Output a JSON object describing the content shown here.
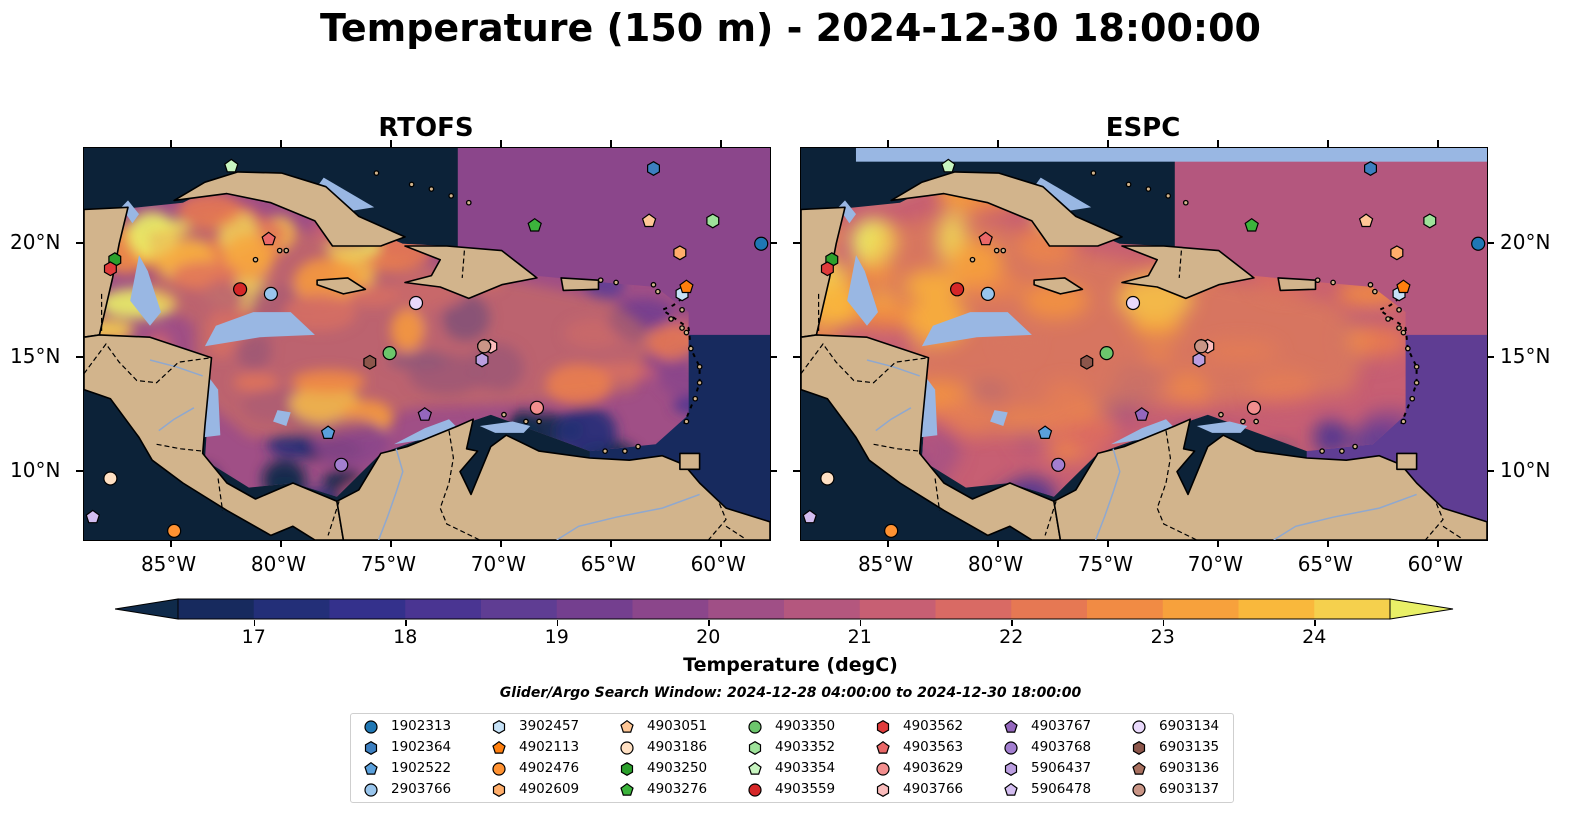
{
  "title": "Temperature (150 m) - 2024-12-30 18:00:00",
  "panels": [
    {
      "title": "RTOFS"
    },
    {
      "title": "ESPC"
    }
  ],
  "axes": {
    "lon_ticks": [
      "85°W",
      "80°W",
      "75°W",
      "70°W",
      "65°W",
      "60°W"
    ],
    "lat_ticks": [
      "20°N",
      "15°N",
      "10°N"
    ]
  },
  "colorbar": {
    "label": "Temperature (degC)",
    "ticks": [
      "17",
      "18",
      "19",
      "20",
      "21",
      "22",
      "23",
      "24"
    ],
    "range": [
      16.5,
      24.5
    ],
    "extend": "both",
    "colors": [
      "#0f2a4a",
      "#172a5e",
      "#232f78",
      "#34318c",
      "#4a3592",
      "#5f3d93",
      "#743f8f",
      "#8b468b",
      "#a04f86",
      "#b4577e",
      "#c75f73",
      "#d96a64",
      "#e67853",
      "#f18b44",
      "#f7a13c",
      "#f9b83c",
      "#f5d04d",
      "#e9f067"
    ]
  },
  "search_window": "Glider/Argo Search Window: 2024-12-28 04:00:00 to 2024-12-30 18:00:00",
  "legend": [
    {
      "id": "1902313",
      "marker": "circle",
      "color": "#1f77b4"
    },
    {
      "id": "1902364",
      "marker": "hexagon",
      "color": "#3c7fc0"
    },
    {
      "id": "1902522",
      "marker": "pentagon",
      "color": "#5aa0dc"
    },
    {
      "id": "2903766",
      "marker": "circle",
      "color": "#99c5ec"
    },
    {
      "id": "3902457",
      "marker": "hexagon",
      "color": "#c6e2f7"
    },
    {
      "id": "4902113",
      "marker": "pentagon",
      "color": "#ff7f0e"
    },
    {
      "id": "4902476",
      "marker": "circle",
      "color": "#ff9232"
    },
    {
      "id": "4902609",
      "marker": "hexagon",
      "color": "#ffae6b"
    },
    {
      "id": "4903051",
      "marker": "pentagon",
      "color": "#ffc796"
    },
    {
      "id": "4903186",
      "marker": "circle",
      "color": "#ffe0c3"
    },
    {
      "id": "4903250",
      "marker": "hexagon",
      "color": "#2ca02c"
    },
    {
      "id": "4903276",
      "marker": "pentagon",
      "color": "#3cb43c"
    },
    {
      "id": "4903350",
      "marker": "circle",
      "color": "#6cc66c"
    },
    {
      "id": "4903352",
      "marker": "hexagon",
      "color": "#9ee29a"
    },
    {
      "id": "4903354",
      "marker": "pentagon",
      "color": "#c8f5c0"
    },
    {
      "id": "4903559",
      "marker": "circle",
      "color": "#d62728"
    },
    {
      "id": "4903562",
      "marker": "hexagon",
      "color": "#e03c3c"
    },
    {
      "id": "4903563",
      "marker": "pentagon",
      "color": "#ea6868"
    },
    {
      "id": "4903629",
      "marker": "circle",
      "color": "#f28e8e"
    },
    {
      "id": "4903766",
      "marker": "hexagon",
      "color": "#fbbcbc"
    },
    {
      "id": "4903767",
      "marker": "pentagon",
      "color": "#9467bd"
    },
    {
      "id": "4903768",
      "marker": "circle",
      "color": "#a37fd0"
    },
    {
      "id": "5906437",
      "marker": "hexagon",
      "color": "#bb9ee0"
    },
    {
      "id": "5906478",
      "marker": "pentagon",
      "color": "#d3bdf0"
    },
    {
      "id": "6903134",
      "marker": "circle",
      "color": "#e9d9fb"
    },
    {
      "id": "6903135",
      "marker": "hexagon",
      "color": "#8c564b"
    },
    {
      "id": "6903136",
      "marker": "pentagon",
      "color": "#a8705f"
    },
    {
      "id": "6903137",
      "marker": "circle",
      "color": "#c99586"
    }
  ],
  "float_positions": [
    {
      "id": "1902313",
      "lon": -58.2,
      "lat": 20.0
    },
    {
      "id": "1902364",
      "lon": -63.1,
      "lat": 23.3
    },
    {
      "id": "1902522",
      "lon": -77.9,
      "lat": 11.7
    },
    {
      "id": "2903766",
      "lon": -80.5,
      "lat": 17.8
    },
    {
      "id": "3902457",
      "lon": -61.8,
      "lat": 17.8
    },
    {
      "id": "4902113",
      "lon": -61.6,
      "lat": 18.1
    },
    {
      "id": "4902476",
      "lon": -84.9,
      "lat": 7.4
    },
    {
      "id": "4902609",
      "lon": -61.9,
      "lat": 19.6
    },
    {
      "id": "4903051",
      "lon": -63.3,
      "lat": 21.0
    },
    {
      "id": "4903186",
      "lon": -87.8,
      "lat": 9.7
    },
    {
      "id": "4903250",
      "lon": -87.6,
      "lat": 19.3
    },
    {
      "id": "4903276",
      "lon": -68.5,
      "lat": 20.8
    },
    {
      "id": "4903350",
      "lon": -75.1,
      "lat": 15.2
    },
    {
      "id": "4903352",
      "lon": -60.4,
      "lat": 21.0
    },
    {
      "id": "4903354",
      "lon": -82.3,
      "lat": 23.4
    },
    {
      "id": "4903559",
      "lon": -81.9,
      "lat": 18.0
    },
    {
      "id": "4903562",
      "lon": -87.8,
      "lat": 18.9
    },
    {
      "id": "4903563",
      "lon": -80.6,
      "lat": 20.2
    },
    {
      "id": "4903629",
      "lon": -68.4,
      "lat": 12.8
    },
    {
      "id": "4903766",
      "lon": -70.5,
      "lat": 15.5
    },
    {
      "id": "4903767",
      "lon": -73.5,
      "lat": 12.5
    },
    {
      "id": "4903768",
      "lon": -77.3,
      "lat": 10.3
    },
    {
      "id": "5906437",
      "lon": -70.9,
      "lat": 14.9
    },
    {
      "id": "5906478",
      "lon": -88.6,
      "lat": 8.0
    },
    {
      "id": "6903134",
      "lon": -73.9,
      "lat": 17.4
    },
    {
      "id": "6903135",
      "lon": -76.0,
      "lat": 14.8
    },
    {
      "id": "6903136",
      "lon": -70.8,
      "lat": 15.5
    },
    {
      "id": "6903137",
      "lon": -70.8,
      "lat": 15.5
    }
  ]
}
